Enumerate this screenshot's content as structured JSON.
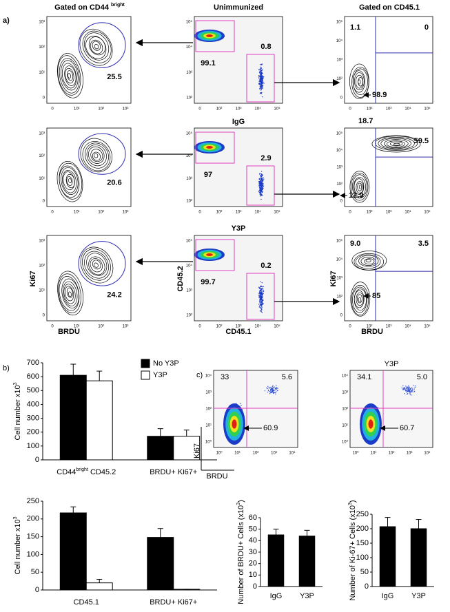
{
  "panel_a": {
    "label": "a)",
    "left_title": {
      "text": "Gated on CD44 ",
      "sup": "bright"
    },
    "right_title": "Gated on CD45.1",
    "rows": [
      {
        "title": "Unimmunized",
        "left_value": "25.5",
        "mid_values": [
          "99.1",
          "0.8"
        ],
        "right_values": [
          "1.1",
          "0",
          "98.9"
        ]
      },
      {
        "title": "IgG",
        "left_value": "20.6",
        "mid_values": [
          "97",
          "2.9"
        ],
        "right_values": [
          "18.7",
          "59.5",
          "12.9"
        ]
      },
      {
        "title": "Y3P",
        "left_value": "24.2",
        "mid_values": [
          "99.7",
          "0.2"
        ],
        "right_values": [
          "9.0",
          "3.5",
          "85"
        ]
      }
    ],
    "left_axes": {
      "x": "BRDU",
      "y": "Ki67"
    },
    "mid_axes": {
      "x": "CD45.1",
      "y": "CD45.2"
    },
    "right_axes": {
      "x": "BRDU",
      "y": "Ki67"
    },
    "ticks": {
      "left_x": [
        "0",
        "10¹",
        "10²",
        "10³"
      ],
      "left_y": [
        "0",
        "10¹",
        "10²",
        "10³"
      ],
      "mid_x": [
        "0",
        "10²",
        "10³",
        "10⁴",
        "10⁵"
      ],
      "mid_y": [
        "10²",
        "10³",
        "10⁴",
        "10⁵"
      ],
      "right_x": [
        "0",
        "10²",
        "10³",
        "10⁴",
        "10⁵"
      ],
      "right_y": [
        "0",
        "10²",
        "10³",
        "10⁴",
        "10⁵"
      ]
    }
  },
  "panel_b": {
    "label": "b)",
    "series": [
      {
        "name": "No Y3P",
        "color": "#000000"
      },
      {
        "name": "Y3P",
        "color": "#ffffff"
      }
    ],
    "charts": [
      {
        "type": "bar",
        "ylabel": {
          "text": "Cell number x10",
          "sup": "3"
        },
        "categories": [
          {
            "text": "CD44",
            "sup": "bright",
            "tail": " CD45.2"
          },
          {
            "text": "BRDU+ Ki67+"
          }
        ],
        "values": [
          [
            610,
            170
          ],
          [
            570,
            170
          ]
        ],
        "errors": [
          [
            80,
            55
          ],
          [
            70,
            45
          ]
        ],
        "ylim": [
          0,
          700
        ],
        "yticks": [
          0,
          100,
          200,
          300,
          400,
          500,
          600,
          700
        ]
      },
      {
        "type": "bar",
        "ylabel": {
          "text": "Cell number x10",
          "sup": "3"
        },
        "categories": [
          {
            "text": "CD45.1"
          },
          {
            "text": "BRDU+ Ki67+"
          }
        ],
        "values": [
          [
            217,
            148
          ],
          [
            20,
            2
          ]
        ],
        "errors": [
          [
            17,
            25
          ],
          [
            10,
            0
          ]
        ],
        "ylim": [
          0,
          250
        ],
        "yticks": [
          0,
          50,
          100,
          150,
          200,
          250
        ]
      }
    ]
  },
  "panel_c": {
    "label": "c)",
    "axes": {
      "x": "BRDU",
      "y": "Ki67"
    },
    "ticks": [
      "10⁰",
      "10¹",
      "10²",
      "10³",
      "10⁴"
    ],
    "plots": [
      {
        "values": [
          "33",
          "5.6",
          "60.9"
        ]
      },
      {
        "title": "Y3P",
        "values": [
          "34.1",
          "5.0",
          "60.7"
        ]
      }
    ],
    "charts": [
      {
        "type": "bar",
        "ylabel": {
          "text": "Number of BRDU+ Cells (x10",
          "sup": "3",
          "tail": ")"
        },
        "categories": [
          "IgG",
          "Y3P"
        ],
        "values": [
          45,
          44
        ],
        "errors": [
          5,
          5
        ],
        "color": "#000000",
        "ylim": [
          0,
          60
        ],
        "yticks": [
          0,
          10,
          20,
          30,
          40,
          50,
          60
        ]
      },
      {
        "type": "bar",
        "ylabel": {
          "text": "Number of Ki-67+ Cells (x10",
          "sup": "3",
          "tail": ")"
        },
        "categories": [
          "IgG",
          "Y3P"
        ],
        "values": [
          207,
          200
        ],
        "errors": [
          32,
          32
        ],
        "color": "#000000",
        "ylim": [
          0,
          250
        ],
        "yticks": [
          0,
          50,
          100,
          150,
          200,
          250
        ]
      }
    ]
  }
}
